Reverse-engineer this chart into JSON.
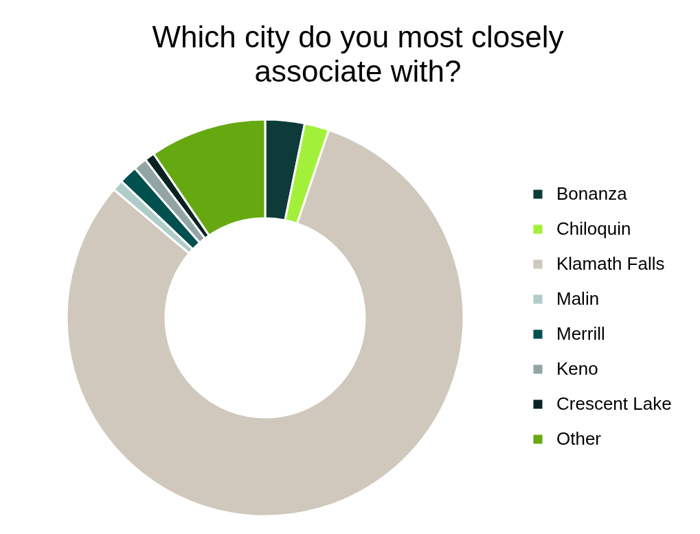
{
  "chart_data": {
    "type": "donut",
    "title": "Which city do you most closely associate with?",
    "categories": [
      "Bonanza",
      "Chiloquin",
      "Klamath Falls",
      "Malin",
      "Merrill",
      "Keno",
      "Crescent Lake",
      "Other"
    ],
    "values": [
      3.2,
      2.0,
      81.0,
      0.9,
      1.5,
      1.1,
      0.8,
      9.5
    ],
    "colors": [
      "#0f3a3a",
      "#a3f03a",
      "#d0c8bc",
      "#aecdc8",
      "#00504f",
      "#92a5a4",
      "#0a2222",
      "#66a80f"
    ],
    "legend": "right"
  }
}
